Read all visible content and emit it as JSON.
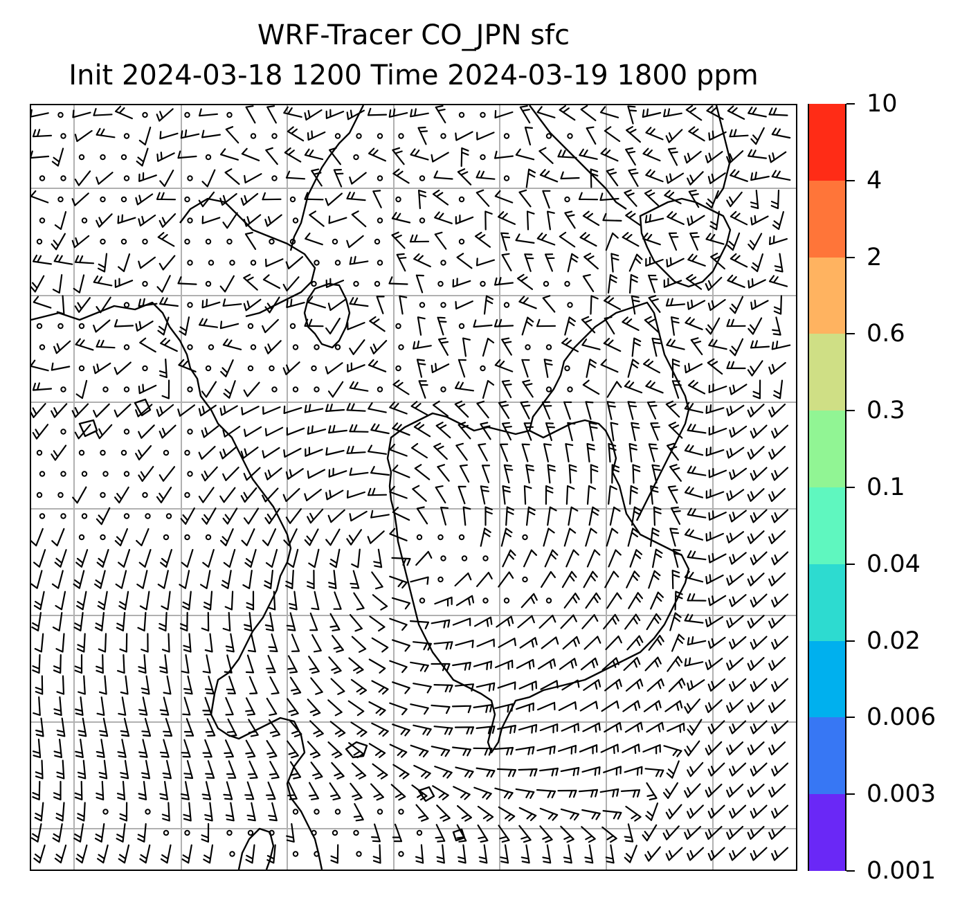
{
  "title": {
    "line1": "WRF-Tracer CO_JPN sfc",
    "line2": "Init 2024-03-18 1200 Time 2024-03-19 1800 ppm"
  },
  "map": {
    "field": "CO_JPN tracer concentration (sfc)",
    "graticule_visible": true,
    "graticule_color": "#b0b0b0",
    "coastline_color": "#000000",
    "overlay": "wind barbs",
    "barb_color": "#000000"
  },
  "colorbar": {
    "units": "ppm",
    "levels": [
      "0.001",
      "0.003",
      "0.006",
      "0.02",
      "0.04",
      "0.1",
      "0.3",
      "0.6",
      "2",
      "4",
      "10"
    ],
    "colors": [
      "#6a28f6",
      "#3777f4",
      "#00b0ee",
      "#2ddbd0",
      "#5ff7bf",
      "#91f594",
      "#cfdf85",
      "#ffb360",
      "#ff7539",
      "#ff2c16"
    ]
  }
}
